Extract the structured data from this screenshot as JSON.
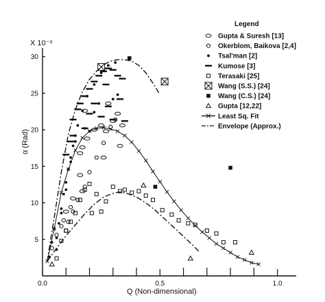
{
  "chart_data": {
    "type": "scatter",
    "xlabel": "Q (Non-dimensional)",
    "ylabel": "α (Rad)",
    "y_multiplier": "X 10⁻³",
    "xlim": [
      0,
      1.08
    ],
    "ylim": [
      0,
      31
    ],
    "x_ticks": [
      {
        "value": 0,
        "label": "0.0"
      },
      {
        "value": 0.5,
        "label": "0.5"
      },
      {
        "value": 1.0,
        "label": "1.0"
      }
    ],
    "y_ticks": [
      {
        "value": 5,
        "label": "5"
      },
      {
        "value": 10,
        "label": "10"
      },
      {
        "value": 15,
        "label": "15"
      },
      {
        "value": 20,
        "label": "20"
      },
      {
        "value": 25,
        "label": "25"
      },
      {
        "value": 30,
        "label": "30"
      }
    ],
    "minor_ticks": [
      0.1,
      0.2,
      0.3,
      0.4,
      0.6,
      0.7,
      0.8,
      0.9
    ],
    "legend_title": "Legend",
    "legend_position": "top-right",
    "series": [
      {
        "name": "Gupta & Suresh",
        "ref": "[13]",
        "marker": "ellipse",
        "points": [
          [
            0.16,
            16.8
          ],
          [
            0.17,
            17.6
          ],
          [
            0.19,
            18.8
          ],
          [
            0.22,
            20
          ],
          [
            0.25,
            20.6
          ],
          [
            0.27,
            19.8
          ],
          [
            0.3,
            21.2
          ],
          [
            0.32,
            22.2
          ],
          [
            0.33,
            17.8
          ],
          [
            0.34,
            20.6
          ],
          [
            0.26,
            16.2
          ],
          [
            0.16,
            13.8
          ],
          [
            0.17,
            11.6
          ],
          [
            0.13,
            10.6
          ],
          [
            0.1,
            8.8
          ],
          [
            0.18,
            22.6
          ],
          [
            0.28,
            23.6
          ]
        ]
      },
      {
        "name": "Okerblom, Baikova",
        "ref": "[2,4]",
        "marker": "circle",
        "points": [
          [
            0.04,
            3.8
          ],
          [
            0.06,
            5.6
          ],
          [
            0.08,
            6.8
          ],
          [
            0.11,
            7.4
          ],
          [
            0.13,
            8.8
          ],
          [
            0.15,
            10.4
          ],
          [
            0.18,
            12.2
          ],
          [
            0.2,
            14.2
          ],
          [
            0.23,
            16.2
          ],
          [
            0.26,
            18.2
          ],
          [
            0.29,
            20.4
          ],
          [
            0.31,
            21.4
          ],
          [
            0.12,
            9.4
          ],
          [
            0.1,
            6.2
          ],
          [
            0.09,
            7.6
          ]
        ]
      },
      {
        "name": "Tsal'man",
        "ref": "[2]",
        "marker": "dot",
        "points": [
          [
            0.03,
            2.6
          ],
          [
            0.04,
            4.6
          ],
          [
            0.05,
            6.4
          ],
          [
            0.06,
            5.2
          ],
          [
            0.07,
            7.2
          ],
          [
            0.08,
            9.2
          ],
          [
            0.09,
            11.2
          ],
          [
            0.1,
            12.8
          ],
          [
            0.11,
            14.6
          ],
          [
            0.12,
            16.2
          ],
          [
            0.13,
            17.8
          ],
          [
            0.14,
            19.2
          ],
          [
            0.15,
            20.6
          ],
          [
            0.17,
            22.6
          ],
          [
            0.19,
            24.6
          ],
          [
            0.22,
            26.2
          ],
          [
            0.25,
            27.8
          ],
          [
            0.28,
            28.8
          ],
          [
            0.31,
            29.2
          ],
          [
            0.32,
            24.8
          ],
          [
            0.08,
            8.6
          ],
          [
            0.1,
            11.8
          ],
          [
            0.12,
            15.6
          ],
          [
            0.14,
            18.4
          ],
          [
            0.18,
            20.2
          ],
          [
            0.2,
            19.8
          ],
          [
            0.22,
            22.4
          ],
          [
            0.24,
            23.6
          ],
          [
            0.3,
            24.2
          ],
          [
            0.06,
            3.6
          ]
        ]
      },
      {
        "name": "Kumose",
        "ref": "[3]",
        "marker": "dash",
        "points": [
          [
            0.1,
            16.6
          ],
          [
            0.12,
            18.4
          ],
          [
            0.13,
            21.4
          ],
          [
            0.16,
            23.6
          ],
          [
            0.18,
            24.6
          ],
          [
            0.2,
            25.6
          ],
          [
            0.22,
            26.6
          ],
          [
            0.24,
            27.4
          ],
          [
            0.26,
            28
          ],
          [
            0.28,
            28.4
          ],
          [
            0.3,
            28.2
          ],
          [
            0.32,
            27.4
          ],
          [
            0.34,
            27
          ],
          [
            0.15,
            22.8
          ],
          [
            0.2,
            22.2
          ],
          [
            0.25,
            21.8
          ],
          [
            0.3,
            21.4
          ],
          [
            0.35,
            21.2
          ],
          [
            0.13,
            19.2
          ],
          [
            0.18,
            20.2
          ],
          [
            0.28,
            23.2
          ],
          [
            0.33,
            24.2
          ],
          [
            0.22,
            23.6
          ],
          [
            0.27,
            26.2
          ]
        ]
      },
      {
        "name": "Terasaki",
        "ref": "[25]",
        "marker": "square",
        "points": [
          [
            0.08,
            4.8
          ],
          [
            0.1,
            6.2
          ],
          [
            0.12,
            7.4
          ],
          [
            0.14,
            8.6
          ],
          [
            0.16,
            10.4
          ],
          [
            0.18,
            11.8
          ],
          [
            0.2,
            12.6
          ],
          [
            0.23,
            11.2
          ],
          [
            0.27,
            10.2
          ],
          [
            0.3,
            12.2
          ],
          [
            0.33,
            11.6
          ],
          [
            0.35,
            11.8
          ],
          [
            0.38,
            11.4
          ],
          [
            0.41,
            11.6
          ],
          [
            0.44,
            11
          ],
          [
            0.47,
            10.4
          ],
          [
            0.51,
            9
          ],
          [
            0.55,
            8.4
          ],
          [
            0.58,
            7.6
          ],
          [
            0.62,
            7.2
          ],
          [
            0.65,
            7
          ],
          [
            0.7,
            6.2
          ],
          [
            0.74,
            5.8
          ],
          [
            0.77,
            4.6
          ],
          [
            0.82,
            4.6
          ],
          [
            0.25,
            8.8
          ],
          [
            0.21,
            8.6
          ],
          [
            0.06,
            2.4
          ]
        ]
      },
      {
        "name": "Wang (S.S.)",
        "ref": "[24]",
        "marker": "boxed-x",
        "points": [
          [
            0.25,
            28.6
          ],
          [
            0.52,
            26.6
          ]
        ]
      },
      {
        "name": "Wang (C.S.)",
        "ref": "[24]",
        "marker": "filled-square",
        "points": [
          [
            0.48,
            12.2
          ],
          [
            0.8,
            14.8
          ],
          [
            0.37,
            29.8
          ]
        ]
      },
      {
        "name": "Gupta",
        "ref": "[12,22]",
        "marker": "triangle",
        "points": [
          [
            0.89,
            3.2
          ],
          [
            0.63,
            2.4
          ],
          [
            0.43,
            12.4
          ],
          [
            0.04,
            1.6
          ]
        ]
      }
    ],
    "lines": [
      {
        "name": "Least Sq. Fit",
        "style": "solid-x",
        "points": [
          [
            0.02,
            2
          ],
          [
            0.05,
            6.5
          ],
          [
            0.08,
            11.4
          ],
          [
            0.11,
            14.6
          ],
          [
            0.14,
            17.2
          ],
          [
            0.17,
            18.9
          ],
          [
            0.2,
            19.8
          ],
          [
            0.23,
            20.2
          ],
          [
            0.26,
            20.3
          ],
          [
            0.29,
            20.1
          ],
          [
            0.32,
            19.8
          ],
          [
            0.35,
            19.2
          ],
          [
            0.38,
            18.3
          ],
          [
            0.41,
            17.1
          ],
          [
            0.44,
            15.8
          ],
          [
            0.47,
            14.3
          ],
          [
            0.5,
            12.9
          ],
          [
            0.53,
            11.5
          ],
          [
            0.56,
            10.2
          ],
          [
            0.59,
            9
          ],
          [
            0.62,
            7.9
          ],
          [
            0.65,
            6.9
          ],
          [
            0.68,
            6
          ],
          [
            0.71,
            5.2
          ],
          [
            0.74,
            4.4
          ],
          [
            0.77,
            3.8
          ],
          [
            0.8,
            3.2
          ],
          [
            0.83,
            2.6
          ],
          [
            0.86,
            2.2
          ],
          [
            0.89,
            1.8
          ],
          [
            0.92,
            1.6
          ]
        ]
      },
      {
        "name": "Envelope (Approx.)",
        "style": "dash-dot",
        "points": [
          [
            0.02,
            2
          ],
          [
            0.05,
            8
          ],
          [
            0.08,
            14.2
          ],
          [
            0.11,
            19.4
          ],
          [
            0.14,
            22.8
          ],
          [
            0.17,
            25.2
          ],
          [
            0.2,
            26.9
          ],
          [
            0.23,
            28
          ],
          [
            0.26,
            28.9
          ],
          [
            0.29,
            29.4
          ],
          [
            0.32,
            29.6
          ],
          [
            0.35,
            29.6
          ],
          [
            0.38,
            29.4
          ],
          [
            0.41,
            28.8
          ],
          [
            0.44,
            27.8
          ],
          [
            0.47,
            26.4
          ],
          [
            0.5,
            24.8
          ]
        ]
      },
      {
        "name": "",
        "style": "dash-dot",
        "points": [
          [
            0.02,
            2
          ],
          [
            0.06,
            3.8
          ],
          [
            0.1,
            5.5
          ],
          [
            0.14,
            7
          ],
          [
            0.18,
            8.5
          ],
          [
            0.22,
            9.8
          ],
          [
            0.26,
            10.8
          ],
          [
            0.3,
            11.3
          ],
          [
            0.33,
            11.5
          ],
          [
            0.36,
            11.3
          ],
          [
            0.4,
            10.8
          ],
          [
            0.44,
            10
          ],
          [
            0.48,
            9
          ],
          [
            0.52,
            7.8
          ],
          [
            0.56,
            6.6
          ],
          [
            0.6,
            5.4
          ],
          [
            0.64,
            4.2
          ],
          [
            0.67,
            3.2
          ]
        ]
      }
    ]
  }
}
